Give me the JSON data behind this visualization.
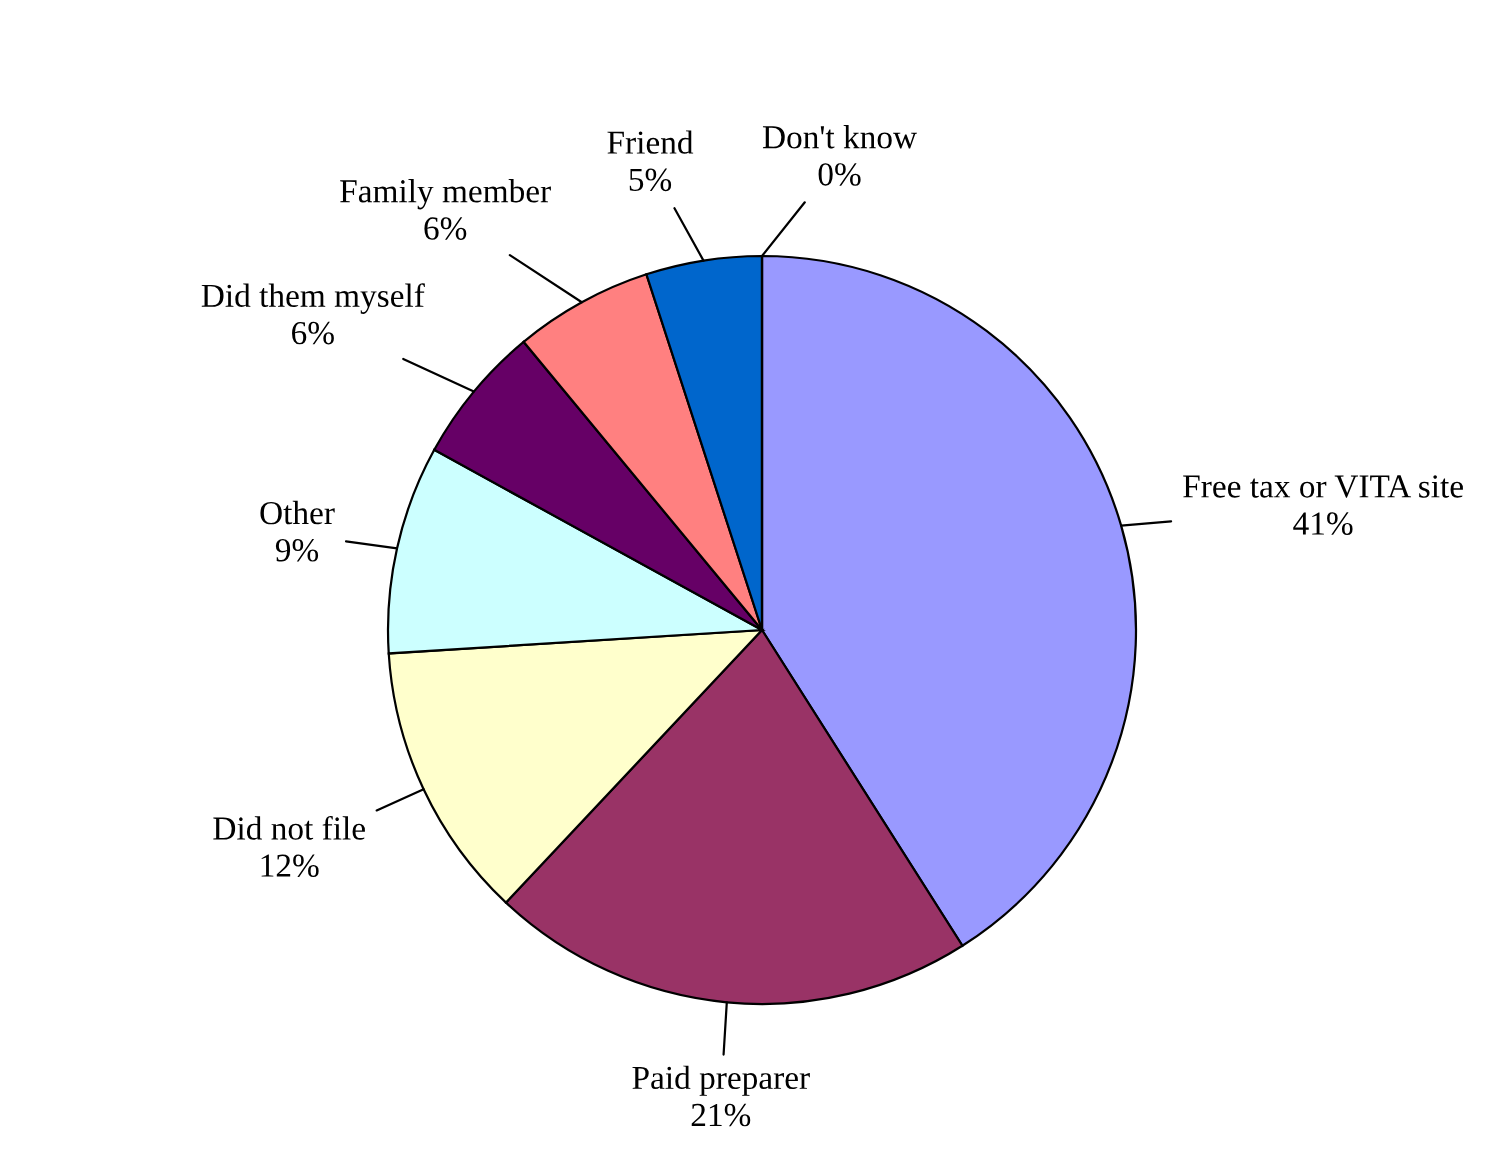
{
  "chart_data": {
    "type": "pie",
    "categories": [
      "Free tax or VITA site",
      "Paid preparer",
      "Did not file",
      "Other",
      "Did them myself",
      "Family member",
      "Friend",
      "Don't know"
    ],
    "values": [
      41,
      21,
      12,
      9,
      6,
      6,
      5,
      0
    ],
    "colors": [
      "#9999ff",
      "#993366",
      "#ffffcc",
      "#ccffff",
      "#660066",
      "#ff8080",
      "#0066cc",
      "#ccccff"
    ],
    "value_labels": [
      "41%",
      "21%",
      "12%",
      "9%",
      "6%",
      "6%",
      "5%",
      "0%"
    ],
    "legend": false
  }
}
